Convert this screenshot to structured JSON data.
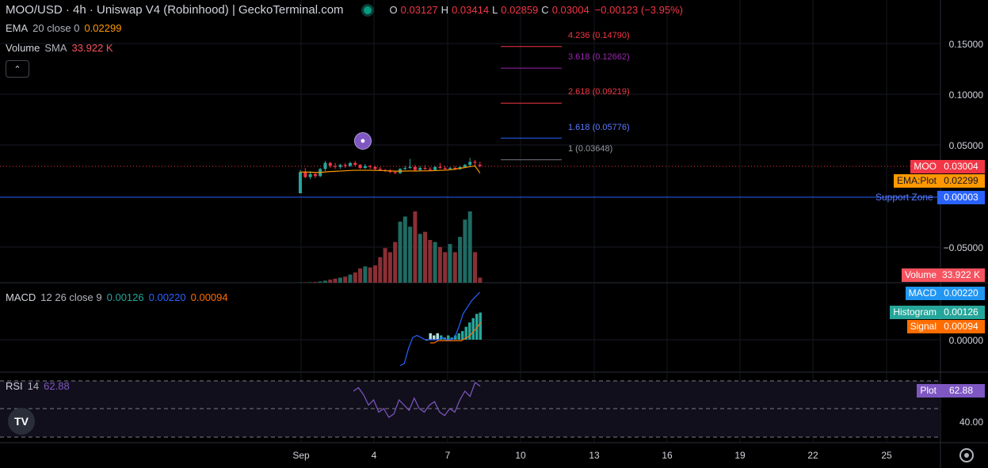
{
  "header": {
    "title": "MOO/USD · 4h · Uniswap V4 (Robinhood) | GeckoTerminal.com",
    "ohlc": [
      {
        "key": "O",
        "value": "0.03127"
      },
      {
        "key": "H",
        "value": "0.03414"
      },
      {
        "key": "L",
        "value": "0.02859"
      },
      {
        "key": "C",
        "value": "0.03004"
      }
    ],
    "change": "−0.00123 (−3.95%)",
    "collapse_icon": "chevron-up-icon"
  },
  "indicators": {
    "ema": {
      "name": "EMA",
      "args": "20 close 0",
      "value": "0.02299",
      "color": "#ff9800"
    },
    "volume": {
      "name": "Volume",
      "args": "SMA",
      "value": "33.922 K",
      "color": "#f7525f"
    },
    "macd": {
      "name": "MACD",
      "args": "12 26 close 9",
      "hist": "0.00126",
      "macd": "0.00220",
      "signal": "0.00094",
      "hist_color": "#26a69a",
      "macd_color": "#2962ff",
      "signal_color": "#ff6d00"
    },
    "rsi": {
      "name": "RSI",
      "args": "14",
      "value": "62.88",
      "color": "#7e57c2"
    }
  },
  "price_axis": [
    "0.15000",
    "0.10000",
    "0.05000",
    "−0.05000"
  ],
  "macd_axis": [
    "0.00000"
  ],
  "rsi_axis": [
    "40.00"
  ],
  "fib_levels": [
    {
      "label": "4.236 (0.14790)",
      "color": "#f23645"
    },
    {
      "label": "3.618 (0.12662)",
      "color": "#9c27b0"
    },
    {
      "label": "2.618 (0.09219)",
      "color": "#f23645"
    },
    {
      "label": "1.618 (0.05776)",
      "color": "#2962ff"
    },
    {
      "label": "1 (0.03648)",
      "color": "#787b86"
    }
  ],
  "support": {
    "label": "Support Zone",
    "value": "0.00003",
    "color": "#2962ff"
  },
  "tags": {
    "moo": {
      "name": "MOO",
      "value": "0.03004",
      "color": "#f23645"
    },
    "ema": {
      "name": "EMA:Plot",
      "value": "0.02299",
      "color": "#ff9800"
    },
    "volume": {
      "name": "Volume",
      "value": "33.922 K",
      "color": "#f7525f"
    },
    "macd": {
      "name": "MACD",
      "value": "0.00220",
      "color": "#2196f3"
    },
    "histogram": {
      "name": "Histogram",
      "value": "0.00126",
      "color": "#26a69a"
    },
    "signal": {
      "name": "Signal",
      "value": "0.00094",
      "color": "#ff6d00"
    },
    "rsi": {
      "name": "Plot",
      "value": "62.88",
      "color": "#7e57c2"
    }
  },
  "time_axis": [
    "Sep",
    "4",
    "7",
    "10",
    "13",
    "16",
    "19",
    "22",
    "25"
  ],
  "logo": "TV",
  "colors": {
    "up": "#26a69a",
    "down": "#f23645",
    "vol_up": "#1e6b63",
    "vol_down": "#8b2f35"
  },
  "chart_data": {
    "type": "candlestick",
    "candles": [
      [
        0.0031,
        0.026,
        0.003,
        0.024
      ],
      [
        0.024,
        0.028,
        0.018,
        0.019
      ],
      [
        0.019,
        0.025,
        0.017,
        0.022
      ],
      [
        0.022,
        0.023,
        0.018,
        0.02
      ],
      [
        0.02,
        0.028,
        0.019,
        0.027
      ],
      [
        0.027,
        0.035,
        0.025,
        0.033
      ],
      [
        0.033,
        0.034,
        0.028,
        0.03
      ],
      [
        0.03,
        0.033,
        0.027,
        0.029
      ],
      [
        0.029,
        0.032,
        0.027,
        0.031
      ],
      [
        0.031,
        0.033,
        0.028,
        0.03
      ],
      [
        0.03,
        0.034,
        0.029,
        0.033
      ],
      [
        0.033,
        0.035,
        0.03,
        0.031
      ],
      [
        0.031,
        0.032,
        0.027,
        0.028
      ],
      [
        0.028,
        0.032,
        0.027,
        0.03
      ],
      [
        0.03,
        0.031,
        0.027,
        0.029
      ],
      [
        0.029,
        0.03,
        0.026,
        0.027
      ],
      [
        0.027,
        0.029,
        0.025,
        0.026
      ],
      [
        0.026,
        0.027,
        0.024,
        0.025
      ],
      [
        0.025,
        0.027,
        0.023,
        0.024
      ],
      [
        0.024,
        0.025,
        0.022,
        0.023
      ],
      [
        0.023,
        0.028,
        0.022,
        0.027
      ],
      [
        0.027,
        0.03,
        0.026,
        0.028
      ],
      [
        0.028,
        0.037,
        0.027,
        0.029
      ],
      [
        0.029,
        0.031,
        0.025,
        0.026
      ],
      [
        0.026,
        0.03,
        0.025,
        0.028
      ],
      [
        0.028,
        0.031,
        0.026,
        0.027
      ],
      [
        0.027,
        0.029,
        0.025,
        0.026
      ],
      [
        0.026,
        0.03,
        0.025,
        0.029
      ],
      [
        0.029,
        0.033,
        0.027,
        0.028
      ],
      [
        0.028,
        0.03,
        0.026,
        0.027
      ],
      [
        0.027,
        0.029,
        0.026,
        0.028
      ],
      [
        0.028,
        0.03,
        0.026,
        0.027
      ],
      [
        0.027,
        0.03,
        0.026,
        0.029
      ],
      [
        0.029,
        0.032,
        0.028,
        0.031
      ],
      [
        0.031,
        0.038,
        0.029,
        0.034
      ],
      [
        0.034,
        0.036,
        0.03,
        0.033
      ],
      [
        0.03127,
        0.03414,
        0.02859,
        0.03004
      ]
    ],
    "volume": [
      0.3,
      0.4,
      0.5,
      0.8,
      1.2,
      2,
      3,
      4,
      5,
      6,
      8,
      10,
      14,
      16,
      15,
      17,
      25,
      34,
      30,
      40,
      60,
      65,
      55,
      70,
      48,
      50,
      42,
      40,
      35,
      30,
      38,
      30,
      45,
      62,
      70,
      30,
      5
    ],
    "ema": [
      0.024,
      0.024,
      0.0238,
      0.0236,
      0.0236,
      0.0241,
      0.0245,
      0.0247,
      0.025,
      0.0252,
      0.0255,
      0.0257,
      0.0257,
      0.0257,
      0.0257,
      0.0256,
      0.0255,
      0.0253,
      0.0251,
      0.0249,
      0.0249,
      0.025,
      0.0251,
      0.025,
      0.0251,
      0.0251,
      0.0252,
      0.0254,
      0.0256,
      0.0258,
      0.0262,
      0.0268,
      0.0276,
      0.0285,
      0.0293,
      0.03,
      0.02299
    ],
    "macd_hist": [
      0.0,
      0.0003,
      0.0002,
      0.0003,
      0.0002,
      0.0001,
      0.0002,
      0.0001,
      0.0002,
      0.0003,
      0.0004,
      0.0006,
      0.0008,
      0.001,
      0.0012,
      0.00126
    ],
    "macd_line": [
      -0.0012,
      -0.0011,
      -0.0004,
      0.0001,
      0.0002,
      0.0001,
      0.0,
      0.0,
      0.0,
      0.0,
      0.0001,
      0.0,
      0.0,
      0.0001,
      0.0006,
      0.0012,
      0.0015,
      0.0018,
      0.002,
      0.0022
    ],
    "signal_line": [
      0.0,
      0.0,
      0.0001,
      0.0001,
      0.0001,
      0.0001,
      0.0001,
      0.0001,
      0.0001,
      0.0002,
      0.0003,
      0.0005,
      0.0007,
      0.00094
    ],
    "rsi": [
      60,
      62,
      58,
      52,
      55,
      48,
      50,
      45,
      47,
      55,
      52,
      49,
      56,
      50,
      48,
      52,
      54,
      48,
      46,
      50,
      48,
      55,
      60,
      57,
      65,
      62.88
    ]
  }
}
